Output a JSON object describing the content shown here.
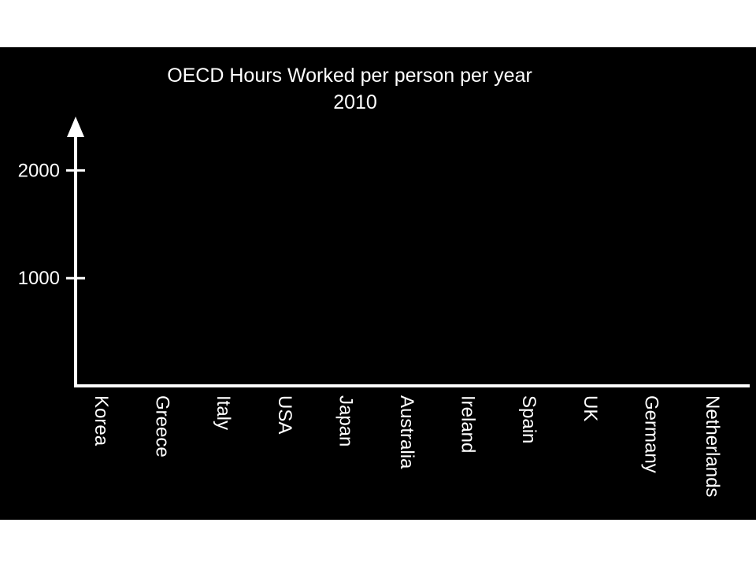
{
  "chart_data": {
    "type": "bar",
    "title": "OECD Hours Worked per person per year",
    "subtitle": "2010",
    "xlabel": "",
    "ylabel": "",
    "categories": [
      "Korea",
      "Greece",
      "Italy",
      "USA",
      "Japan",
      "Australia",
      "Ireland",
      "Spain",
      "UK",
      "Germany",
      "Netherlands"
    ],
    "series": [],
    "yticks": [
      {
        "value": 1000,
        "label": "1000"
      },
      {
        "value": 2000,
        "label": "2000"
      }
    ],
    "ylim": [
      0,
      2500
    ],
    "grid": false,
    "legend": "none",
    "colors": {
      "background": "#000000",
      "foreground": "#ffffff",
      "page": "#ffffff"
    }
  }
}
